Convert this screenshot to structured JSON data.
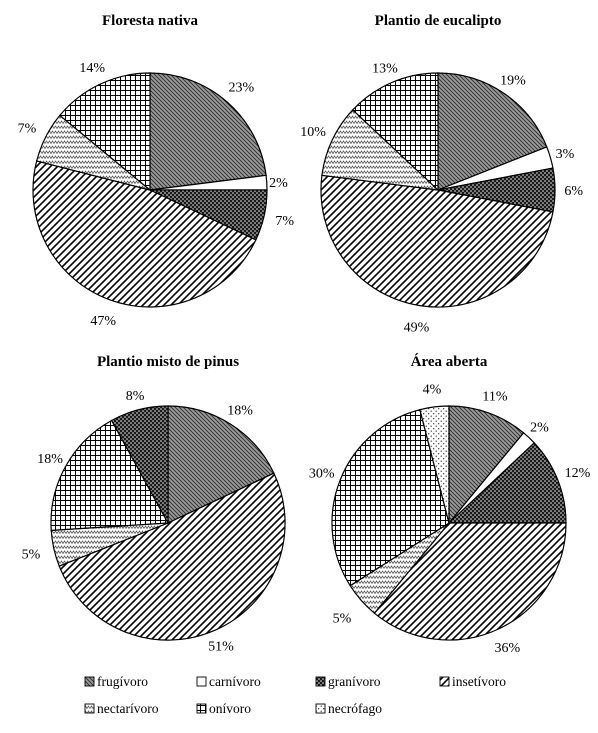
{
  "chart_data": [
    {
      "type": "pie",
      "title": "Floresta nativa",
      "categories": [
        "frugívoro",
        "carnívoro",
        "granívoro",
        "insetívoro",
        "nectarívoro",
        "onívoro"
      ],
      "values": [
        23,
        2,
        7,
        47,
        7,
        14
      ],
      "labels": [
        "23%",
        "2%",
        "7%",
        "47%",
        "7%",
        "14%"
      ]
    },
    {
      "type": "pie",
      "title": "Plantio de eucalipto",
      "categories": [
        "frugívoro",
        "carnívoro",
        "granívoro",
        "insetívoro",
        "nectarívoro",
        "onívoro"
      ],
      "values": [
        19,
        3,
        6,
        49,
        10,
        13
      ],
      "labels": [
        "19%",
        "3%",
        "6%",
        "49%",
        "10%",
        "13%"
      ]
    },
    {
      "type": "pie",
      "title": "Plantio misto de pinus",
      "categories": [
        "frugívoro",
        "insetívoro",
        "nectarívoro",
        "onívoro",
        "granívoro"
      ],
      "values": [
        18,
        51,
        5,
        18,
        8
      ],
      "labels": [
        "18%",
        "51%",
        "5%",
        "18%",
        "8%"
      ]
    },
    {
      "type": "pie",
      "title": "Área aberta",
      "categories": [
        "frugívoro",
        "carnívoro",
        "granívoro",
        "insetívoro",
        "nectarívoro",
        "onívoro",
        "necrófago"
      ],
      "values": [
        11,
        2,
        12,
        36,
        5,
        30,
        4
      ],
      "labels": [
        "11%",
        "2%",
        "12%",
        "36%",
        "5%",
        "30%",
        "4%"
      ]
    }
  ],
  "legend": [
    {
      "key": "frugivoro",
      "label": "frugívoro",
      "pattern": "hatch-dark"
    },
    {
      "key": "carnivoro",
      "label": "carnívoro",
      "pattern": "plain-white"
    },
    {
      "key": "granivoro",
      "label": "granívoro",
      "pattern": "dots-dark"
    },
    {
      "key": "insetivoro",
      "label": "insetívoro",
      "pattern": "diagonal-stripes"
    },
    {
      "key": "nectarivoro",
      "label": "nectarívoro",
      "pattern": "zigzag"
    },
    {
      "key": "onivoro",
      "label": "onívoro",
      "pattern": "grid"
    },
    {
      "key": "necrofago",
      "label": "necrófago",
      "pattern": "sparse-dots"
    }
  ]
}
